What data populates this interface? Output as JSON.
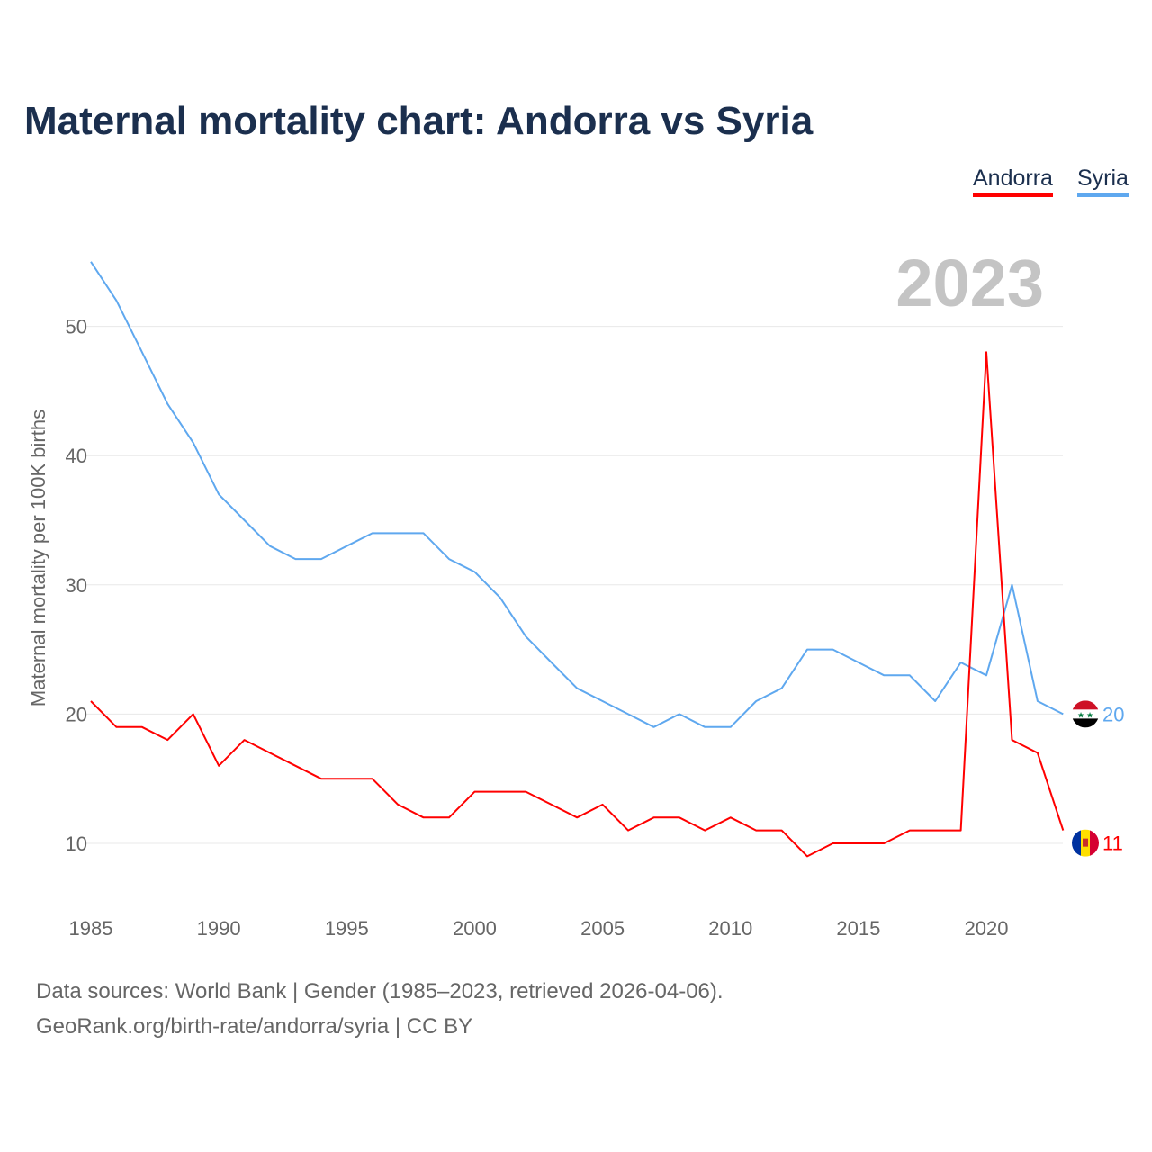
{
  "chart_data": {
    "type": "line",
    "title": "Maternal mortality chart: Andorra vs Syria",
    "ylabel": "Maternal mortality per 100K births",
    "xlabel": "",
    "year_watermark": "2023",
    "x": [
      1985,
      1986,
      1987,
      1988,
      1989,
      1990,
      1991,
      1992,
      1993,
      1994,
      1995,
      1996,
      1997,
      1998,
      1999,
      2000,
      2001,
      2002,
      2003,
      2004,
      2005,
      2006,
      2007,
      2008,
      2009,
      2010,
      2011,
      2012,
      2013,
      2014,
      2015,
      2016,
      2017,
      2018,
      2019,
      2020,
      2021,
      2022,
      2023
    ],
    "series": [
      {
        "name": "Andorra",
        "color": "#ff0000",
        "end_label": "11",
        "values": [
          21,
          19,
          19,
          18,
          20,
          16,
          18,
          17,
          16,
          15,
          15,
          15,
          13,
          12,
          12,
          14,
          14,
          14,
          13,
          12,
          13,
          11,
          12,
          12,
          11,
          12,
          11,
          11,
          9,
          10,
          10,
          10,
          11,
          11,
          11,
          48,
          18,
          17,
          11
        ]
      },
      {
        "name": "Syria",
        "color": "#5fa8ef",
        "end_label": "20",
        "values": [
          55,
          52,
          48,
          44,
          41,
          37,
          35,
          33,
          32,
          32,
          33,
          34,
          34,
          34,
          32,
          31,
          29,
          26,
          24,
          22,
          21,
          20,
          19,
          20,
          19,
          19,
          21,
          22,
          25,
          25,
          24,
          23,
          23,
          21,
          24,
          23,
          30,
          21,
          20
        ]
      }
    ],
    "xticks": [
      "1985",
      "1990",
      "1995",
      "2000",
      "2005",
      "2010",
      "2015",
      "2020"
    ],
    "yticks": [
      "10",
      "20",
      "30",
      "40",
      "50"
    ],
    "xlim": [
      1985,
      2023
    ],
    "ylim": [
      5.5,
      57
    ],
    "grid": true,
    "legend": "top-right"
  },
  "footer": {
    "line1": "Data sources: World Bank | Gender (1985–2023, retrieved 2026-04-06).",
    "line2": "GeoRank.org/birth-rate/andorra/syria | CC BY"
  }
}
